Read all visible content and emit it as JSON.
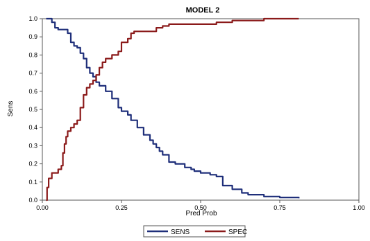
{
  "chart_data": {
    "type": "line",
    "title": "MODEL 2",
    "xlabel": "Pred Prob",
    "ylabel": "Sens",
    "xlim": [
      0,
      1
    ],
    "ylim": [
      0,
      1
    ],
    "x_ticks": [
      "0.00",
      "0.25",
      "0.50",
      "0.75",
      "1.00"
    ],
    "y_ticks": [
      "0.0",
      "0.1",
      "0.2",
      "0.3",
      "0.4",
      "0.5",
      "0.6",
      "0.7",
      "0.8",
      "0.9",
      "1.0"
    ],
    "grid": false,
    "legend_position": "bottom",
    "series": [
      {
        "name": "SENS",
        "color": "#1f2f7a",
        "x": [
          0.012,
          0.025,
          0.03,
          0.04,
          0.05,
          0.07,
          0.08,
          0.09,
          0.1,
          0.11,
          0.12,
          0.13,
          0.14,
          0.15,
          0.16,
          0.17,
          0.18,
          0.2,
          0.22,
          0.24,
          0.25,
          0.27,
          0.28,
          0.3,
          0.32,
          0.34,
          0.35,
          0.36,
          0.37,
          0.38,
          0.4,
          0.42,
          0.45,
          0.47,
          0.48,
          0.5,
          0.53,
          0.55,
          0.57,
          0.6,
          0.63,
          0.65,
          0.7,
          0.75,
          0.81
        ],
        "y": [
          1.0,
          1.0,
          0.98,
          0.95,
          0.94,
          0.94,
          0.92,
          0.87,
          0.85,
          0.84,
          0.81,
          0.78,
          0.73,
          0.7,
          0.68,
          0.65,
          0.63,
          0.6,
          0.56,
          0.51,
          0.49,
          0.47,
          0.44,
          0.4,
          0.36,
          0.33,
          0.31,
          0.29,
          0.27,
          0.25,
          0.21,
          0.2,
          0.18,
          0.17,
          0.16,
          0.15,
          0.14,
          0.13,
          0.08,
          0.06,
          0.04,
          0.03,
          0.02,
          0.015,
          0.01
        ]
      },
      {
        "name": "SPEC",
        "color": "#8b1a1a",
        "x": [
          0.012,
          0.015,
          0.02,
          0.03,
          0.04,
          0.05,
          0.06,
          0.065,
          0.07,
          0.075,
          0.08,
          0.09,
          0.1,
          0.11,
          0.12,
          0.13,
          0.14,
          0.15,
          0.16,
          0.17,
          0.18,
          0.19,
          0.2,
          0.22,
          0.24,
          0.25,
          0.27,
          0.28,
          0.29,
          0.32,
          0.35,
          0.36,
          0.38,
          0.4,
          0.45,
          0.5,
          0.55,
          0.6,
          0.65,
          0.7,
          0.75,
          0.81
        ],
        "y": [
          0.0,
          0.07,
          0.12,
          0.15,
          0.15,
          0.17,
          0.19,
          0.26,
          0.31,
          0.35,
          0.38,
          0.4,
          0.42,
          0.44,
          0.51,
          0.58,
          0.62,
          0.64,
          0.66,
          0.69,
          0.73,
          0.76,
          0.78,
          0.8,
          0.82,
          0.87,
          0.89,
          0.92,
          0.93,
          0.93,
          0.93,
          0.95,
          0.96,
          0.97,
          0.97,
          0.97,
          0.98,
          0.99,
          0.99,
          1.0,
          1.0,
          1.0
        ]
      }
    ]
  }
}
